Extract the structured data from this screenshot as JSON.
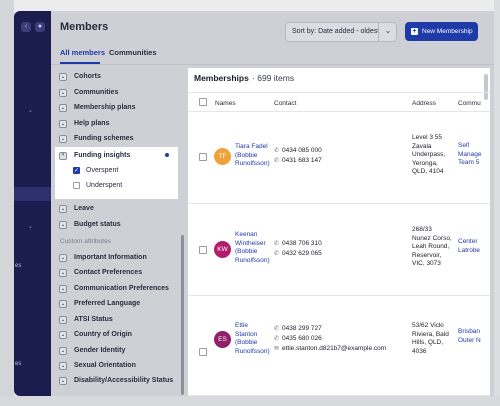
{
  "header": {
    "title": "Members",
    "sort_label": "Sort by: Date added - oldest",
    "sort_chevron": "⌄",
    "new_button_label": "New Membership",
    "new_button_icon": "plus-icon"
  },
  "tabs": [
    {
      "label": "All members",
      "active": true
    },
    {
      "label": "Communities",
      "active": false
    }
  ],
  "sidebar": {
    "fragments": [
      "es",
      "es"
    ]
  },
  "filters": {
    "groups_top": [
      "Cohorts",
      "Communities",
      "Membership plans",
      "Help plans",
      "Funding schemes"
    ],
    "expanded": {
      "label": "Funding insights",
      "options": [
        {
          "label": "Overspent",
          "checked": true
        },
        {
          "label": "Underspent",
          "checked": false
        }
      ]
    },
    "groups_after": [
      "Leave",
      "Budget status"
    ],
    "custom_section_label": "Custom attributes",
    "custom_groups": [
      "Important Information",
      "Contact Preferences",
      "Communication Preferences",
      "Preferred Language",
      "ATSI Status",
      "Country of Origin",
      "Gender Identity",
      "Sexual Orientation",
      "Disability/Accessibility Status"
    ]
  },
  "panel": {
    "title": "Memberships",
    "separator": "·",
    "count": "699 items",
    "columns": [
      "Names",
      "Contact",
      "Address",
      "Commu"
    ]
  },
  "members": [
    {
      "initials": "TF",
      "avatar_color": "#f0a23a",
      "name_lines": [
        "Tiara Fadel",
        "(Bobbie",
        "Runolfsson)"
      ],
      "contacts": [
        {
          "icon": "phone-icon",
          "text": "0434 085 000"
        },
        {
          "icon": "phone-icon",
          "text": "0431 683 147"
        }
      ],
      "address_lines": [
        "Level 3 55",
        "Zavala",
        "Underpass,",
        "Yeronga,",
        "QLD, 4104"
      ],
      "community_lines": [
        "Self",
        "Manage",
        "Team 5"
      ]
    },
    {
      "initials": "KW",
      "avatar_color": "#b21d6b",
      "name_lines": [
        "Keenan",
        "Wintheiser",
        "(Bobbie",
        "Runolfsson)"
      ],
      "contacts": [
        {
          "icon": "phone-icon",
          "text": "0438 706 310"
        },
        {
          "icon": "phone-icon",
          "text": "0432 629 065"
        }
      ],
      "address_lines": [
        "268/33",
        "Nunez Corso,",
        "Leah Round,",
        "Reservoir,",
        "VIC, 3073"
      ],
      "community_lines": [
        "Center",
        "Latrobe"
      ]
    },
    {
      "initials": "ES",
      "avatar_color": "#8e1f68",
      "name_lines": [
        "Ettie",
        "Stanton",
        "(Bobbie",
        "Runolfsson)"
      ],
      "contacts": [
        {
          "icon": "phone-icon",
          "text": "0438 299 727"
        },
        {
          "icon": "phone-icon",
          "text": "0435 680 026"
        },
        {
          "icon": "mail-icon",
          "text": "ettie.stanton.d821b7@example.com"
        }
      ],
      "address_lines": [
        "53/62 Vicki",
        "Riviera, Bald",
        "Hills, QLD,",
        "4036"
      ],
      "community_lines": [
        "Brisban",
        "Outer N"
      ]
    }
  ]
}
